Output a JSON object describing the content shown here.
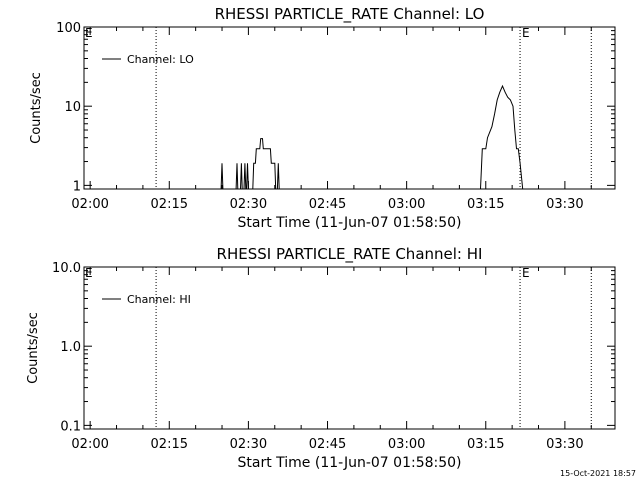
{
  "footer_timestamp": "15-Oct-2021 18:57",
  "chart_data": [
    {
      "type": "line",
      "title": "RHESSI PARTICLE_RATE Channel: LO",
      "xlabel": "Start Time (11-Jun-07 01:58:50)",
      "ylabel": "Counts/sec",
      "xscale": "time",
      "yscale": "log",
      "xlim": [
        "01:58:50",
        "03:39:30"
      ],
      "ylim": [
        0.9,
        100
      ],
      "x_ticks": [
        "02:00",
        "02:15",
        "02:30",
        "02:45",
        "03:00",
        "03:15",
        "03:30"
      ],
      "y_ticks": [
        "1",
        "10",
        "100"
      ],
      "grid": false,
      "legend": {
        "position": "top-left",
        "entries": [
          "Channel: LO"
        ]
      },
      "markers": [
        {
          "x": "02:12:30",
          "label": "",
          "style": "dotted"
        },
        {
          "x": "03:21:30",
          "label": "E",
          "style": "dotted"
        },
        {
          "x": "03:35:00",
          "label": "",
          "style": "dotted"
        }
      ],
      "edge_labels": [
        {
          "position": "top-left",
          "text": "E"
        }
      ],
      "series": [
        {
          "name": "Channel: LO",
          "points": [
            [
              "02:24:50",
              0.9
            ],
            [
              "02:25:00",
              1.9
            ],
            [
              "02:25:10",
              0.9
            ],
            [
              "02:27:40",
              0.9
            ],
            [
              "02:27:50",
              1.9
            ],
            [
              "02:28:00",
              0.9
            ],
            [
              "02:28:30",
              0.9
            ],
            [
              "02:28:40",
              1.9
            ],
            [
              "02:28:50",
              0.9
            ],
            [
              "02:29:10",
              0.9
            ],
            [
              "02:29:20",
              1.9
            ],
            [
              "02:29:30",
              0.9
            ],
            [
              "02:29:40",
              0.9
            ],
            [
              "02:29:50",
              1.9
            ],
            [
              "02:30:00",
              0.9
            ],
            [
              "02:30:50",
              0.9
            ],
            [
              "02:31:00",
              1.9
            ],
            [
              "02:31:20",
              1.9
            ],
            [
              "02:31:30",
              2.9
            ],
            [
              "02:32:10",
              2.9
            ],
            [
              "02:32:20",
              3.9
            ],
            [
              "02:32:40",
              3.9
            ],
            [
              "02:32:50",
              2.9
            ],
            [
              "02:34:10",
              2.9
            ],
            [
              "02:34:20",
              1.9
            ],
            [
              "02:35:00",
              1.9
            ],
            [
              "02:35:10",
              0.9
            ],
            [
              "02:35:30",
              0.9
            ],
            [
              "02:35:40",
              1.9
            ],
            [
              "02:35:50",
              0.9
            ],
            [
              "03:14:00",
              0.9
            ],
            [
              "03:14:20",
              2.9
            ],
            [
              "03:15:00",
              2.9
            ],
            [
              "03:15:20",
              4.0
            ],
            [
              "03:16:10",
              5.5
            ],
            [
              "03:16:40",
              8.0
            ],
            [
              "03:17:10",
              12
            ],
            [
              "03:17:40",
              15
            ],
            [
              "03:18:10",
              18
            ],
            [
              "03:18:40",
              15
            ],
            [
              "03:19:10",
              13
            ],
            [
              "03:19:40",
              12
            ],
            [
              "03:20:10",
              10
            ],
            [
              "03:20:30",
              5.0
            ],
            [
              "03:20:50",
              2.9
            ],
            [
              "03:21:10",
              2.9
            ],
            [
              "03:21:30",
              1.9
            ],
            [
              "03:22:00",
              0.9
            ]
          ]
        }
      ]
    },
    {
      "type": "line",
      "title": "RHESSI PARTICLE_RATE Channel: HI",
      "xlabel": "Start Time (11-Jun-07 01:58:50)",
      "ylabel": "Counts/sec",
      "xscale": "time",
      "yscale": "log",
      "xlim": [
        "01:58:50",
        "03:39:30"
      ],
      "ylim": [
        0.09,
        10
      ],
      "x_ticks": [
        "02:00",
        "02:15",
        "02:30",
        "02:45",
        "03:00",
        "03:15",
        "03:30"
      ],
      "y_ticks": [
        "0.1",
        "1.0",
        "10.0"
      ],
      "grid": false,
      "legend": {
        "position": "top-left",
        "entries": [
          "Channel: HI"
        ]
      },
      "markers": [
        {
          "x": "02:12:30",
          "label": "",
          "style": "dotted"
        },
        {
          "x": "03:21:30",
          "label": "E",
          "style": "dotted"
        },
        {
          "x": "03:35:00",
          "label": "",
          "style": "dotted"
        }
      ],
      "edge_labels": [
        {
          "position": "top-left",
          "text": "E"
        }
      ],
      "series": [
        {
          "name": "Channel: HI",
          "points": []
        }
      ]
    }
  ]
}
